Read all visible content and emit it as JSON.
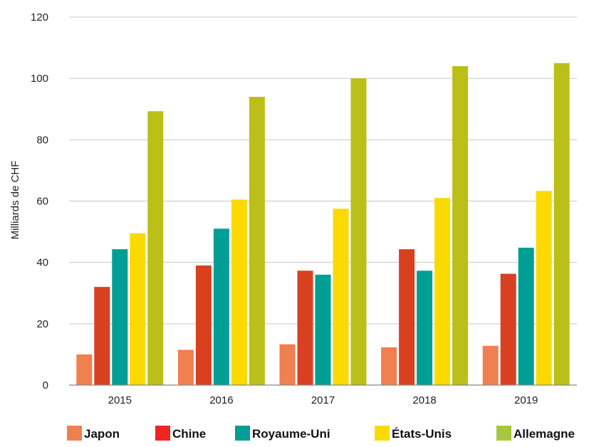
{
  "chart_data": {
    "type": "bar",
    "title": "",
    "xlabel": "",
    "ylabel": "Milliards de CHF",
    "ylim": [
      0,
      120
    ],
    "yticks": [
      0,
      20,
      40,
      60,
      80,
      100,
      120
    ],
    "grid": true,
    "legend_position": "bottom",
    "categories": [
      "2015",
      "2016",
      "2017",
      "2018",
      "2019"
    ],
    "series": [
      {
        "name": "Japon",
        "color": "#f08050",
        "values": [
          10,
          11.5,
          13.3,
          12.3,
          12.8
        ]
      },
      {
        "name": "Chine",
        "color": "#d94020",
        "values": [
          32,
          39,
          37.3,
          44.3,
          36.3
        ]
      },
      {
        "name": "Royaume-Uni",
        "color": "#009e94",
        "values": [
          44.3,
          51,
          36,
          37.3,
          44.8
        ]
      },
      {
        "name": "États-Unis",
        "color": "#fada00",
        "values": [
          49.5,
          60.5,
          57.5,
          61,
          63.3
        ]
      },
      {
        "name": "Allemagne",
        "color": "#bcbf17",
        "values": [
          89.3,
          94,
          100,
          104,
          105
        ]
      }
    ],
    "legend_colors": [
      "#f08050",
      "#ee2520",
      "#009e94",
      "#fada00",
      "#a7c73e"
    ]
  }
}
